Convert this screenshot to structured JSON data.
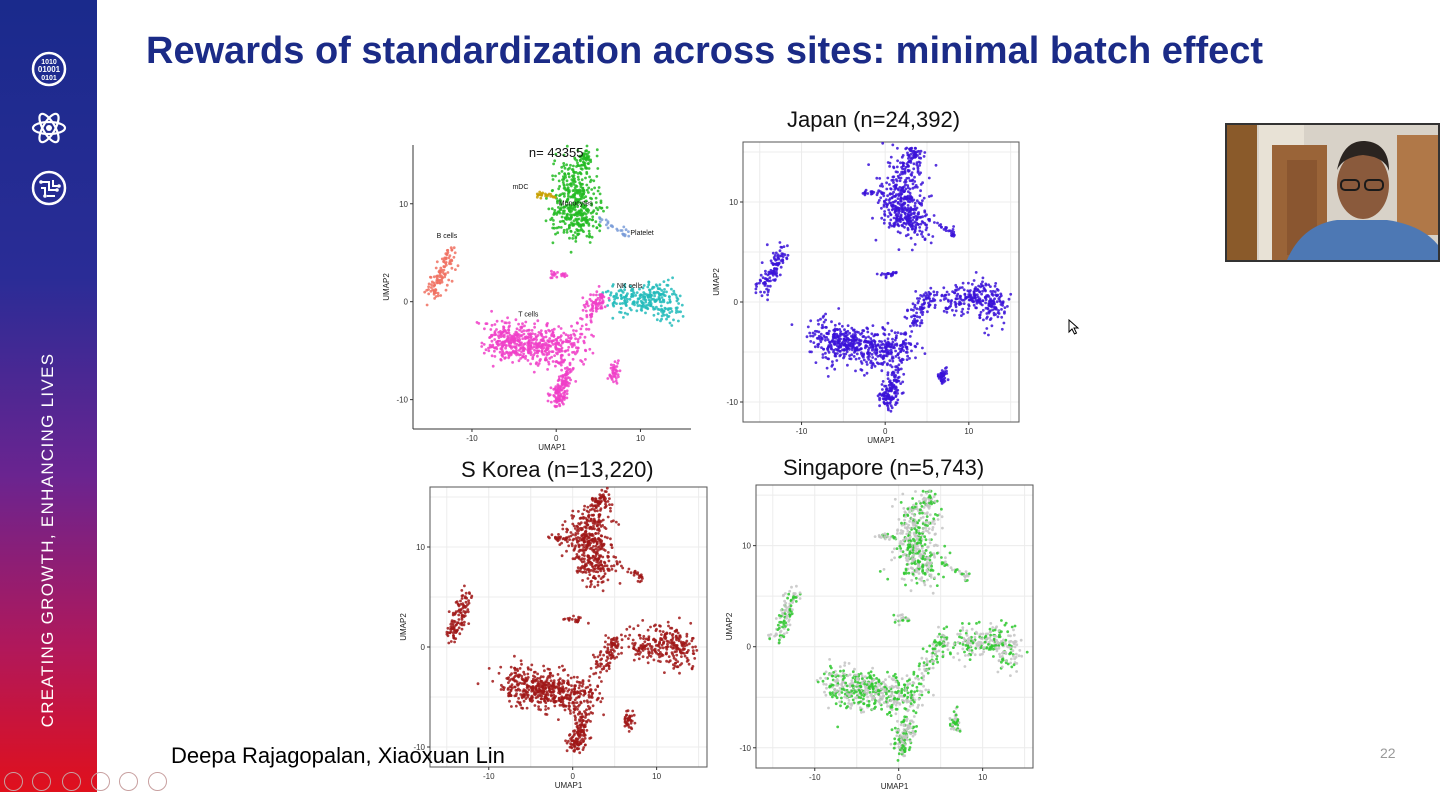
{
  "slide": {
    "title": "Rewards of standardization across sites: minimal batch effect",
    "tagline": "CREATING GROWTH, ENHANCING LIVES",
    "author": "Deepa Rajagopalan, Xiaoxuan Lin",
    "page_number": "22",
    "sidebar_icons": [
      "binary-data-icon",
      "atom-icon",
      "circuit-brain-icon"
    ],
    "panels": [
      {
        "id": "all",
        "annotation": "n= 43355"
      },
      {
        "id": "japan",
        "title": "Japan (n=24,392)"
      },
      {
        "id": "korea",
        "title": "S Korea (n=13,220)"
      },
      {
        "id": "singapore",
        "title": "Singapore (n=5,743)"
      }
    ]
  },
  "chart_data": [
    {
      "type": "scatter",
      "title": "",
      "annotation": "n= 43355",
      "xlabel": "UMAP1",
      "ylabel": "UMAP2",
      "xlim": [
        -17,
        16
      ],
      "ylim": [
        -13,
        16
      ],
      "xticks": [
        -10,
        0,
        10
      ],
      "yticks": [
        -10,
        0,
        10
      ],
      "grid": false,
      "clusters": [
        {
          "label": "Monocytes",
          "color": "#22bb22",
          "center": [
            2,
            9.5
          ]
        },
        {
          "label": "mDC",
          "color": "#c8a000",
          "center": [
            -2.2,
            11
          ]
        },
        {
          "label": "Platelet",
          "color": "#7a9cd8",
          "center": [
            8,
            7
          ]
        },
        {
          "label": "B cells",
          "color": "#f07060",
          "center": [
            -13.5,
            3
          ]
        },
        {
          "label": "NK cells",
          "color": "#22bbbb",
          "center": [
            10,
            0
          ]
        },
        {
          "label": "T cells",
          "color": "#f040c8",
          "center": [
            -3,
            -5
          ]
        }
      ],
      "tick_labels": {
        "x": [
          "-10",
          "0",
          "10"
        ],
        "y": [
          "-10",
          "0",
          "10"
        ]
      }
    },
    {
      "type": "scatter",
      "title": "Japan (n=24,392)",
      "xlabel": "UMAP1",
      "ylabel": "UMAP2",
      "xlim": [
        -17,
        16
      ],
      "ylim": [
        -12,
        16
      ],
      "xticks": [
        -10,
        0,
        10
      ],
      "yticks": [
        -10,
        0,
        10
      ],
      "grid": true,
      "point_color": "#3a12d8",
      "tick_labels": {
        "x": [
          "-10",
          "0",
          "10"
        ],
        "y": [
          "-10",
          "0",
          "10"
        ]
      }
    },
    {
      "type": "scatter",
      "title": "S Korea (n=13,220)",
      "xlabel": "UMAP1",
      "ylabel": "UMAP2",
      "xlim": [
        -17,
        16
      ],
      "ylim": [
        -12,
        16
      ],
      "xticks": [
        -10,
        0,
        10
      ],
      "yticks": [
        -10,
        0,
        10
      ],
      "grid": true,
      "point_color": "#a01818",
      "tick_labels": {
        "x": [
          "-10",
          "0",
          "10"
        ],
        "y": [
          "-10",
          "0",
          "10"
        ]
      }
    },
    {
      "type": "scatter",
      "title": "Singapore (n=5,743)",
      "xlabel": "UMAP1",
      "ylabel": "UMAP2",
      "xlim": [
        -17,
        16
      ],
      "ylim": [
        -12,
        16
      ],
      "xticks": [
        -10,
        0,
        10
      ],
      "yticks": [
        -10,
        0,
        10
      ],
      "grid": true,
      "point_color": "#2ec82e",
      "background_color": "#c4c4c4",
      "tick_labels": {
        "x": [
          "-10",
          "0",
          "10"
        ],
        "y": [
          "-10",
          "0",
          "10"
        ]
      }
    }
  ],
  "colors": {
    "title": "#1b2b87",
    "sidebar_top": "#1a2a8c",
    "sidebar_bottom": "#e0101c"
  },
  "presentation_controls": [
    "previous-icon",
    "next-icon",
    "pen-icon",
    "slides-icon",
    "zoom-icon",
    "more-icon"
  ]
}
